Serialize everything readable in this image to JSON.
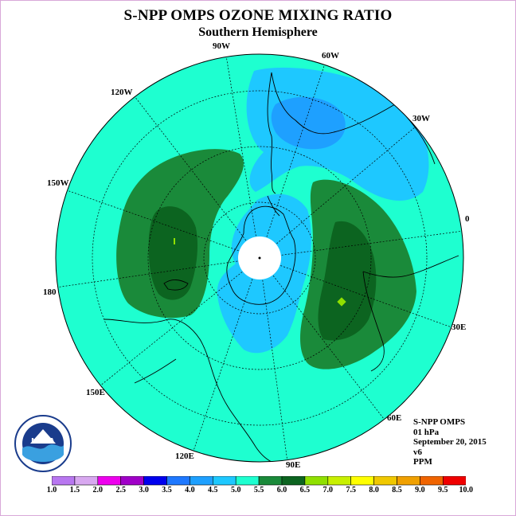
{
  "title": "S-NPP OMPS OZONE MIXING RATIO",
  "subtitle": "Southern Hemisphere",
  "info": {
    "product": "S-NPP OMPS",
    "pressure": "01 hPa",
    "date": "September 20, 2015",
    "version": "v6",
    "units": "PPM"
  },
  "logo": {
    "text": "NOAA",
    "ring_text": "NATIONAL OCEANIC AND ATMOSPHERIC ADMINISTRATION · U.S. DEPARTMENT OF COMMERCE"
  },
  "longitude_labels": [
    "90W",
    "60W",
    "30W",
    "0",
    "30E",
    "60E",
    "90E",
    "120E",
    "150E",
    "180",
    "150W",
    "120W"
  ],
  "colorbar": {
    "ticks": [
      "1.0",
      "1.5",
      "2.0",
      "2.5",
      "3.0",
      "3.5",
      "4.0",
      "4.5",
      "5.0",
      "5.5",
      "6.0",
      "6.5",
      "7.0",
      "7.5",
      "8.0",
      "8.5",
      "9.0",
      "9.5",
      "10.0"
    ],
    "colors": [
      "#b877f0",
      "#d8a8f0",
      "#ee00ee",
      "#a000c8",
      "#0000ee",
      "#1e78ff",
      "#1ea0ff",
      "#1ec8ff",
      "#1effd0",
      "#1a8a3a",
      "#0c6420",
      "#90e000",
      "#c8f000",
      "#ffff00",
      "#f0c800",
      "#f0a000",
      "#f06400",
      "#f00000",
      "#8b5a3c"
    ]
  },
  "map_colors": {
    "background": "#1effd0",
    "range_4_0_4_5": "#1ec8ff",
    "range_3_5_4_0": "#1ea0ff",
    "range_5_5_6_0": "#1a8a3a",
    "range_6_0_6_5": "#0c6420",
    "range_6_5_7_0": "#90e000",
    "polar_gap": "#ffffff"
  }
}
